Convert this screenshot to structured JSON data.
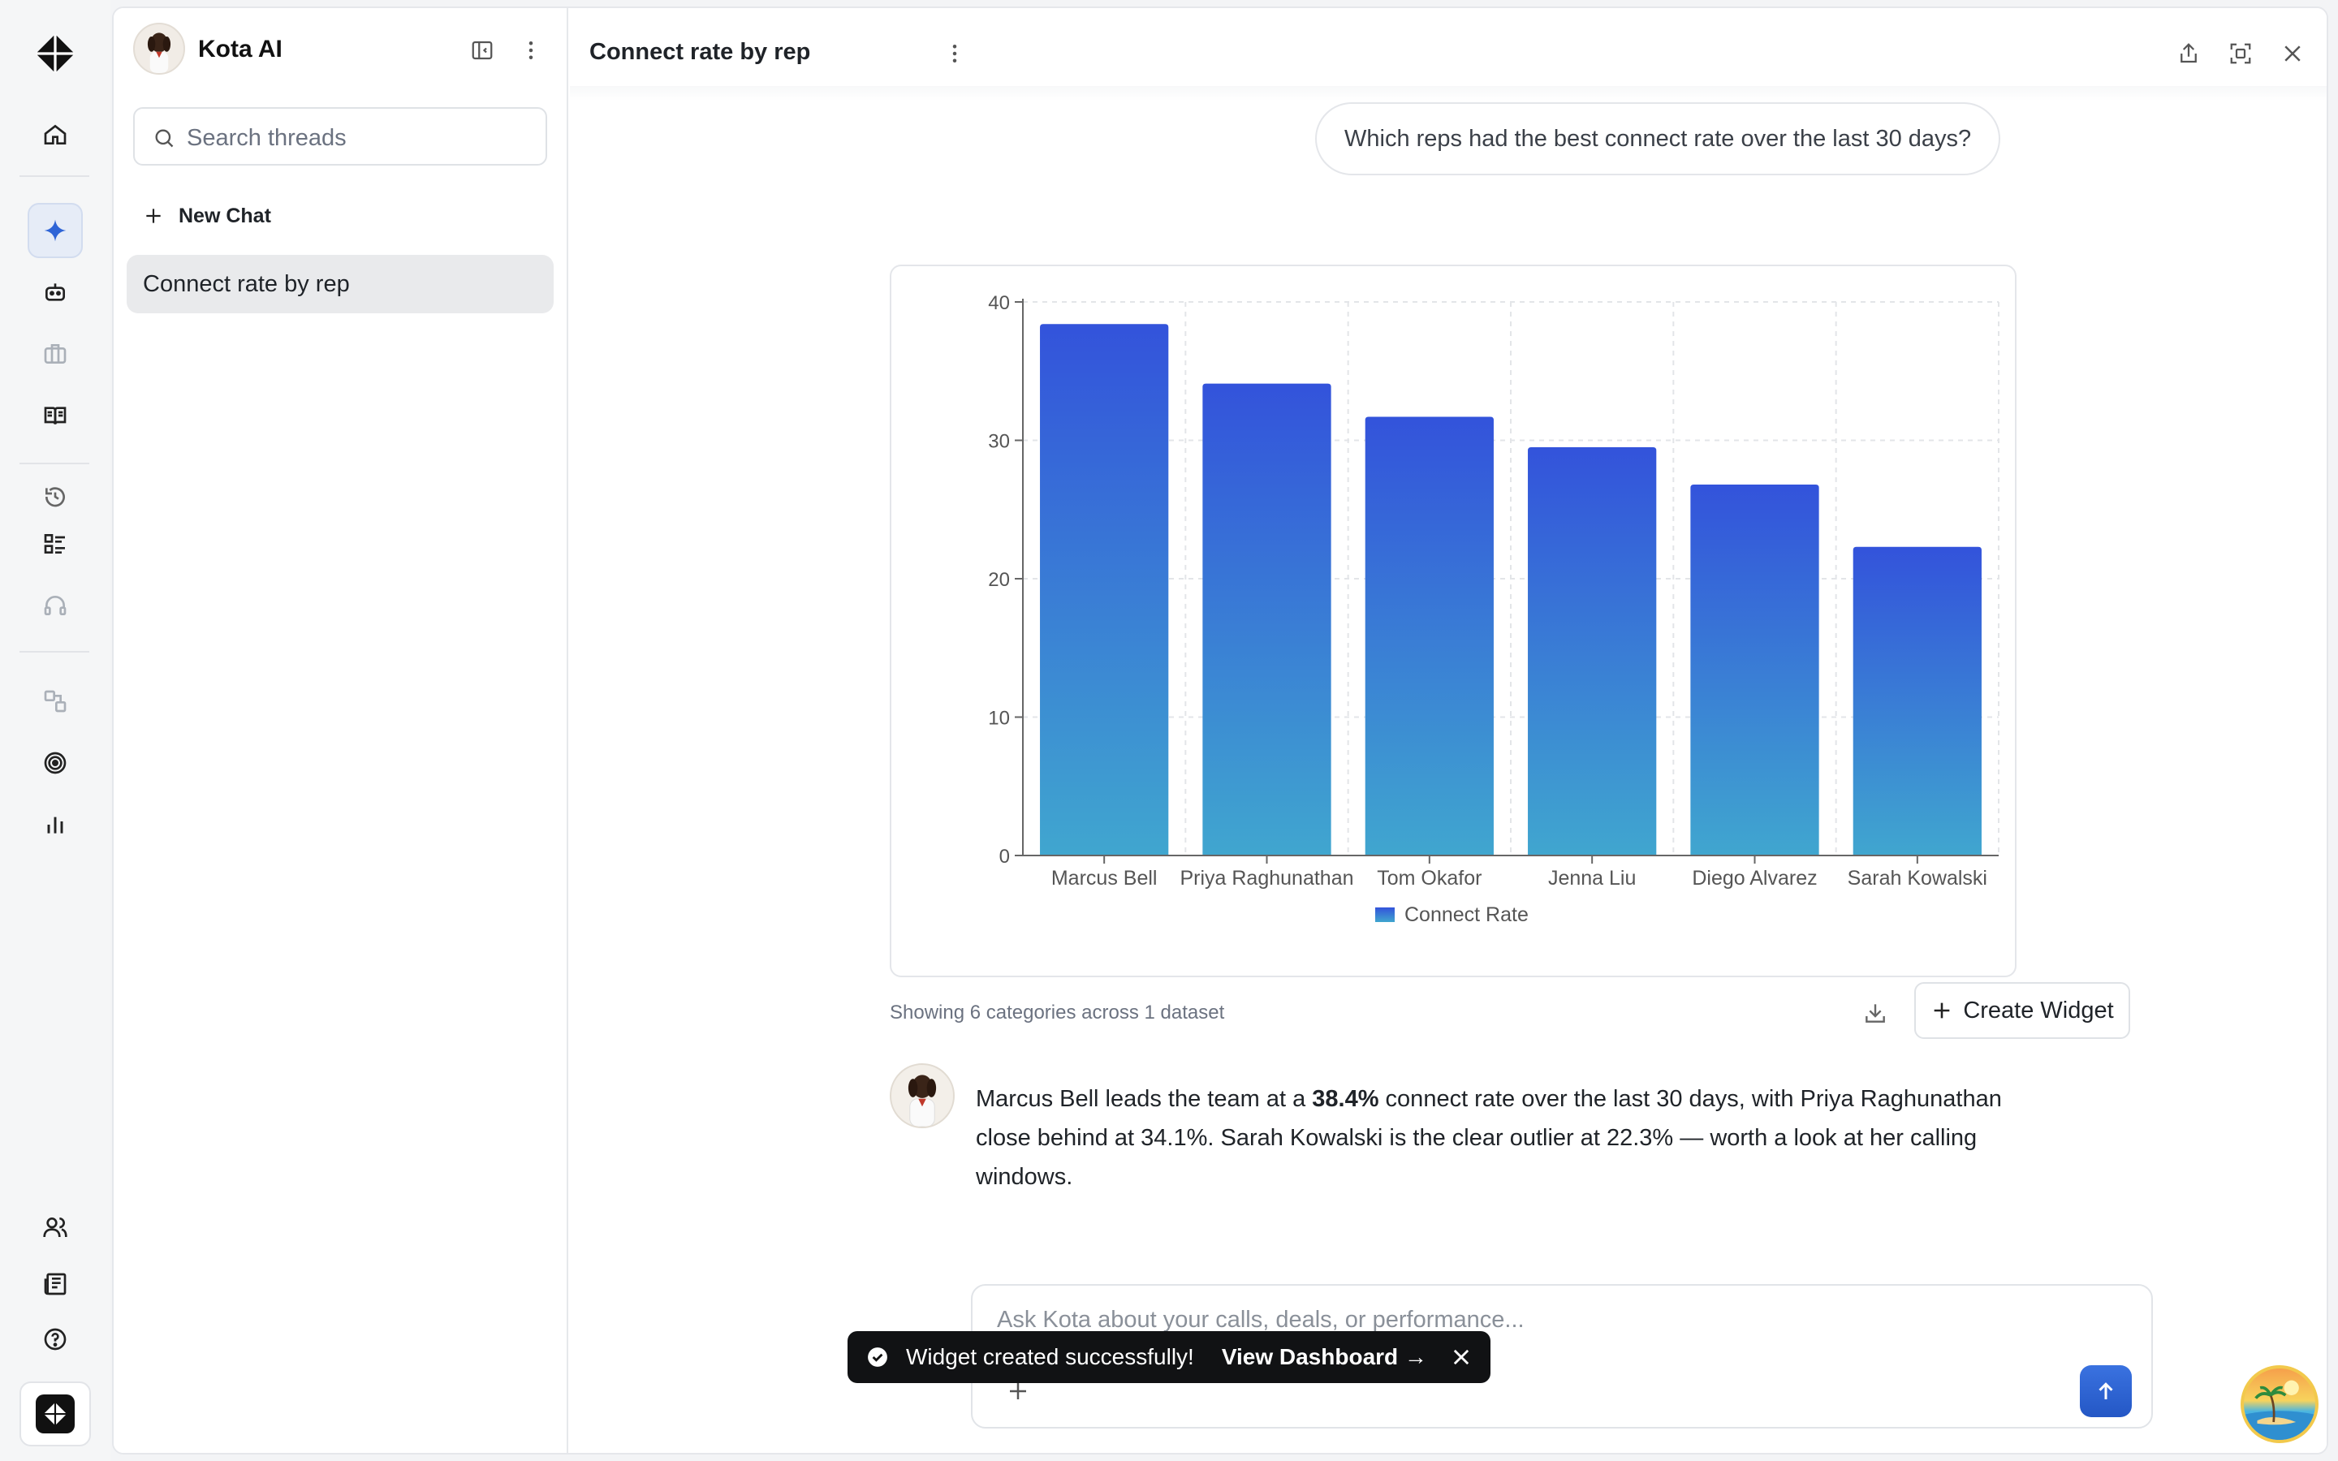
{
  "sidebar": {
    "app_title": "Kota AI",
    "search_placeholder": "Search threads",
    "new_chat_label": "New Chat",
    "threads": [
      {
        "label": "Connect rate by rep",
        "active": true
      }
    ]
  },
  "conversation": {
    "title": "Connect rate by rep",
    "user_message": "Which reps had the best connect rate over the last 30 days?",
    "chart_caption": "Showing 6 categories across 1 dataset",
    "create_widget_label": "Create Widget",
    "ai_response": {
      "part1": "Marcus Bell leads the team at a ",
      "highlight": "38.4%",
      "part2": " connect rate over the last 30 days, with Priya Raghunathan close behind at 34.1%. Sarah Kowalski is the clear outlier at 22.3% — worth a look at her calling windows."
    }
  },
  "composer": {
    "placeholder": "Ask Kota about your calls, deals, or performance..."
  },
  "toast": {
    "message": "Widget created successfully!",
    "link_label": "View Dashboard →"
  },
  "colors": {
    "bar_top": "#3353db",
    "bar_bottom": "#40a6cf",
    "accent": "#2e64d6"
  },
  "chart_data": {
    "type": "bar",
    "categories": [
      "Marcus Bell",
      "Priya Raghunathan",
      "Tom Okafor",
      "Jenna Liu",
      "Diego Alvarez",
      "Sarah Kowalski"
    ],
    "series": [
      {
        "name": "Connect Rate",
        "values": [
          38.4,
          34.1,
          31.7,
          29.5,
          26.8,
          22.3
        ]
      }
    ],
    "yticks": [
      "0",
      "10",
      "20",
      "30",
      "40"
    ],
    "ylim": [
      0,
      40
    ],
    "grid": true,
    "legend": "bottom"
  }
}
